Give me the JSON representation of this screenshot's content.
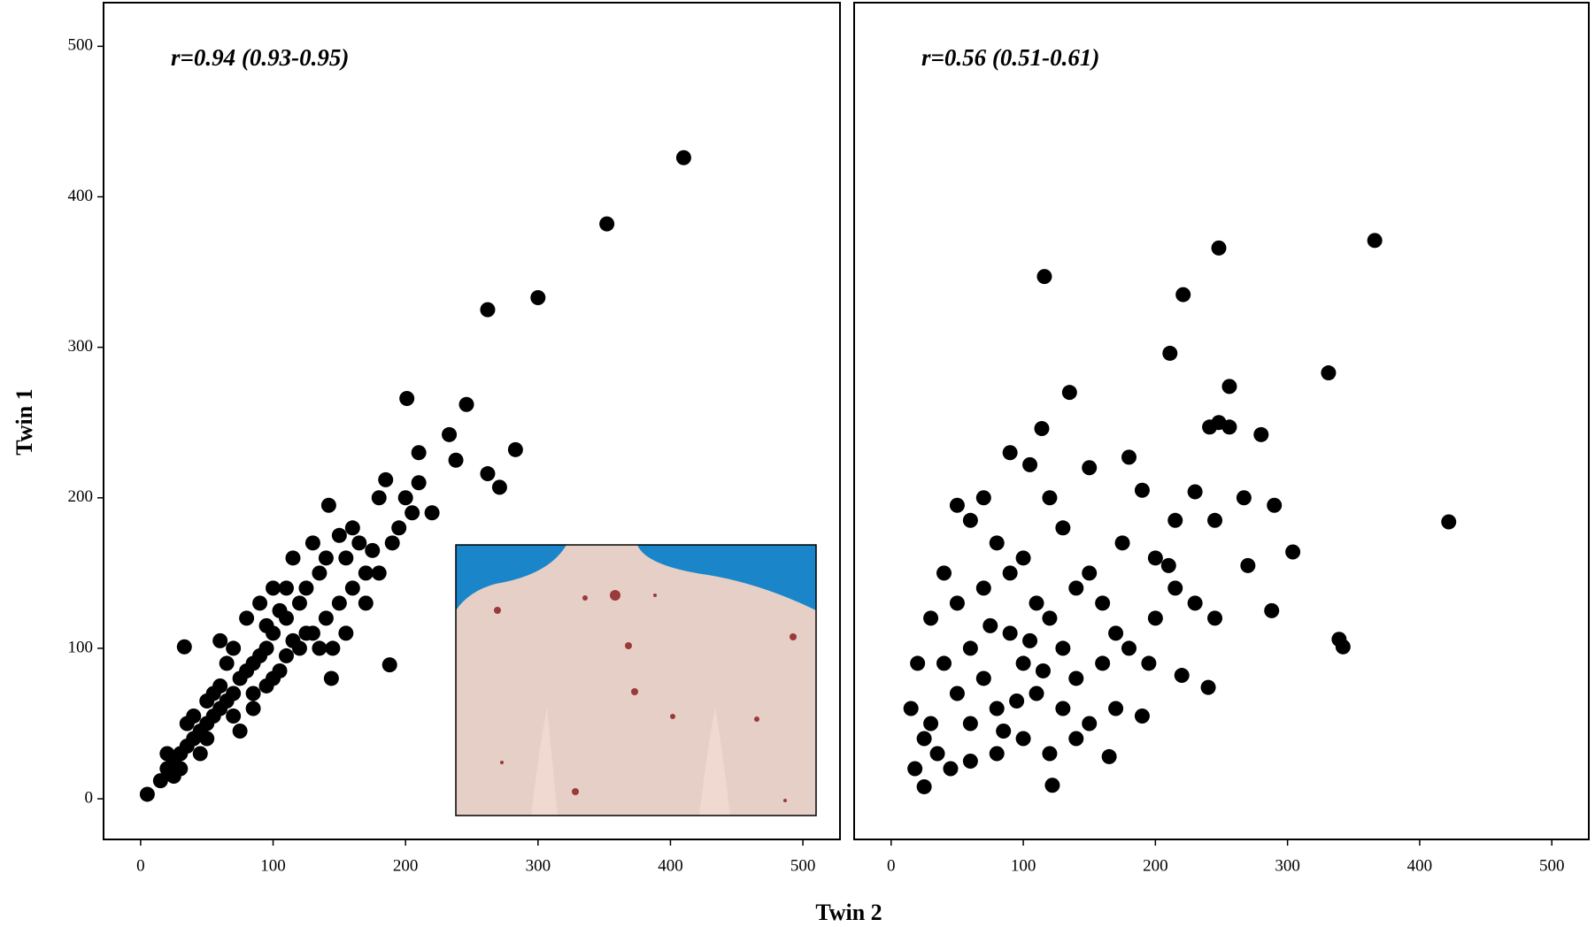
{
  "chart_data": [
    {
      "type": "scatter",
      "annotation": "r=0.94 (0.93-0.95)",
      "color": "#000000",
      "xlim": [
        -28,
        528
      ],
      "ylim": [
        -27,
        529
      ],
      "xticks": [
        0,
        100,
        200,
        300,
        400,
        500
      ],
      "yticks": [
        0,
        100,
        200,
        300,
        400,
        500
      ],
      "x": [
        410,
        352,
        300,
        262,
        201,
        246,
        233,
        283,
        210,
        262,
        271,
        188,
        144,
        33,
        5,
        238,
        200,
        205,
        220,
        210,
        185,
        195,
        180,
        175,
        165,
        150,
        142,
        160,
        155,
        140,
        130,
        135,
        125,
        120,
        110,
        100,
        95,
        90,
        85,
        80,
        75,
        70,
        65,
        60,
        55,
        50,
        45,
        40,
        35,
        30,
        25,
        20,
        15,
        20,
        30,
        40,
        50,
        60,
        70,
        80,
        90,
        100,
        110,
        120,
        130,
        140,
        150,
        160,
        170,
        60,
        70,
        100,
        75,
        85,
        110,
        115,
        125,
        135,
        180,
        190,
        170,
        155,
        145,
        50,
        45,
        35,
        25,
        105,
        95,
        65,
        55,
        105,
        115,
        95,
        85
      ],
      "values": [
        426,
        382,
        333,
        325,
        266,
        262,
        242,
        232,
        230,
        216,
        207,
        89,
        80,
        101,
        3,
        225,
        200,
        190,
        190,
        210,
        212,
        180,
        200,
        165,
        170,
        175,
        195,
        180,
        160,
        160,
        170,
        150,
        140,
        130,
        120,
        110,
        100,
        95,
        90,
        85,
        80,
        70,
        65,
        60,
        55,
        50,
        45,
        40,
        35,
        30,
        25,
        20,
        12,
        30,
        20,
        55,
        40,
        75,
        55,
        120,
        130,
        80,
        95,
        100,
        110,
        120,
        130,
        140,
        150,
        105,
        100,
        140,
        45,
        60,
        140,
        160,
        110,
        100,
        150,
        170,
        130,
        110,
        100,
        65,
        30,
        50,
        15,
        125,
        115,
        90,
        70,
        85,
        105,
        75,
        70
      ]
    },
    {
      "type": "scatter",
      "annotation": "r=0.56 (0.51-0.61)",
      "color": "#000000",
      "xlim": [
        -28,
        528
      ],
      "ylim": [
        -27,
        529
      ],
      "xticks": [
        0,
        100,
        200,
        300,
        400,
        500
      ],
      "x": [
        422,
        366,
        248,
        116,
        221,
        211,
        331,
        256,
        135,
        241,
        248,
        256,
        280,
        114,
        304,
        342,
        339,
        288,
        240,
        122,
        18,
        25,
        90,
        105,
        150,
        180,
        190,
        230,
        267,
        290,
        215,
        245,
        270,
        210,
        230,
        245,
        200,
        180,
        195,
        220,
        160,
        150,
        130,
        120,
        100,
        70,
        50,
        60,
        80,
        40,
        30,
        20,
        15,
        25,
        35,
        45,
        60,
        80,
        100,
        120,
        140,
        165,
        190,
        60,
        70,
        80,
        90,
        100,
        110,
        120,
        130,
        140,
        160,
        170,
        50,
        40,
        30,
        50,
        70,
        90,
        110,
        130,
        150,
        60,
        75,
        85,
        95,
        105,
        115,
        140,
        170,
        175,
        200,
        215
      ],
      "values": [
        184,
        371,
        366,
        347,
        335,
        296,
        283,
        274,
        270,
        247,
        250,
        247,
        242,
        246,
        164,
        101,
        106,
        125,
        74,
        9,
        20,
        8,
        230,
        222,
        220,
        227,
        205,
        204,
        200,
        195,
        185,
        185,
        155,
        155,
        130,
        120,
        120,
        100,
        90,
        82,
        90,
        150,
        180,
        200,
        160,
        200,
        195,
        185,
        170,
        150,
        120,
        90,
        60,
        40,
        30,
        20,
        25,
        30,
        40,
        30,
        40,
        28,
        55,
        100,
        80,
        60,
        110,
        90,
        70,
        120,
        100,
        80,
        130,
        110,
        70,
        90,
        50,
        130,
        140,
        150,
        130,
        60,
        50,
        50,
        115,
        45,
        65,
        105,
        85,
        140,
        60,
        170,
        160,
        140
      ]
    }
  ],
  "axis_labels": {
    "y": "Twin 1",
    "x": "Twin 2"
  }
}
